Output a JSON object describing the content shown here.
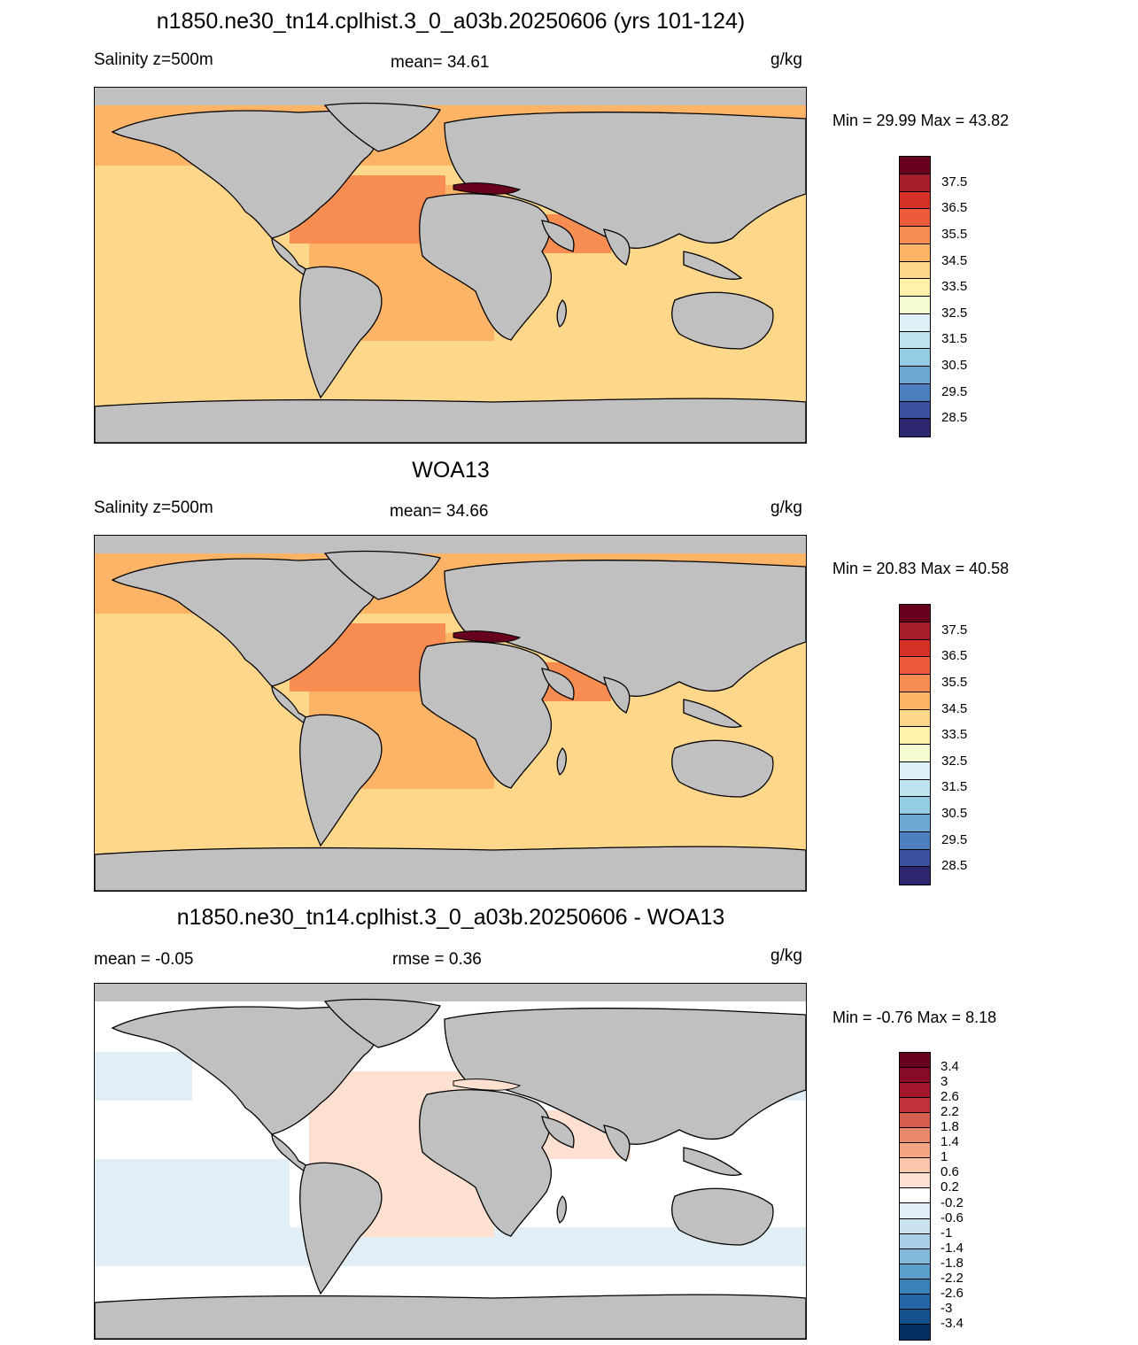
{
  "panels": [
    {
      "title": "n1850.ne30_tn14.cplhist.3_0_a03b.20250606 (yrs 101-124)",
      "left_label": "Salinity z=500m",
      "center_label": "mean=  34.61",
      "units": "g/kg",
      "minmax": "Min =  29.99 Max =  43.82",
      "colorbar": {
        "labels": [
          "37.5",
          "36.5",
          "35.5",
          "34.5",
          "33.5",
          "32.5",
          "31.5",
          "30.5",
          "29.5",
          "28.5"
        ],
        "colors": [
          "#67001f",
          "#a51c2b",
          "#d73027",
          "#ec5b3c",
          "#f88d52",
          "#fdb466",
          "#fed78a",
          "#fff1a8",
          "#f5fbd0",
          "#ddf1f7",
          "#bce3ef",
          "#94cde4",
          "#6ea8d2",
          "#4b7fbe",
          "#3a4f9e",
          "#2d2770"
        ]
      }
    },
    {
      "title": "WOA13",
      "left_label": "Salinity z=500m",
      "center_label": "mean=  34.66",
      "units": "g/kg",
      "minmax": "Min =  20.83 Max =  40.58",
      "colorbar": {
        "labels": [
          "37.5",
          "36.5",
          "35.5",
          "34.5",
          "33.5",
          "32.5",
          "31.5",
          "30.5",
          "29.5",
          "28.5"
        ],
        "colors": [
          "#67001f",
          "#a51c2b",
          "#d73027",
          "#ec5b3c",
          "#f88d52",
          "#fdb466",
          "#fed78a",
          "#fff1a8",
          "#f5fbd0",
          "#ddf1f7",
          "#bce3ef",
          "#94cde4",
          "#6ea8d2",
          "#4b7fbe",
          "#3a4f9e",
          "#2d2770"
        ]
      }
    },
    {
      "title": "n1850.ne30_tn14.cplhist.3_0_a03b.20250606 - WOA13",
      "left_label": "mean =  -0.05",
      "center_label": "rmse =   0.36",
      "units": "g/kg",
      "minmax": "Min =  -0.76 Max =   8.18",
      "colorbar": {
        "labels": [
          "3.4",
          "3",
          "2.6",
          "2.2",
          "1.8",
          "1.4",
          "1",
          "0.6",
          "0.2",
          "-0.2",
          "-0.6",
          "-1",
          "-1.4",
          "-1.8",
          "-2.2",
          "-2.6",
          "-3",
          "-3.4"
        ],
        "colors": [
          "#67001f",
          "#870a26",
          "#a5162f",
          "#c2333b",
          "#d6604d",
          "#e8876a",
          "#f4a582",
          "#f9c5ab",
          "#fde0d0",
          "#ffffff",
          "#e2eef6",
          "#cbe2ef",
          "#a8cfe5",
          "#82b8d9",
          "#5c9ecc",
          "#3a80b9",
          "#2466a6",
          "#15508f",
          "#053061"
        ]
      }
    }
  ],
  "colors": {
    "land": "#c0c0c0",
    "coast": "#000000"
  }
}
